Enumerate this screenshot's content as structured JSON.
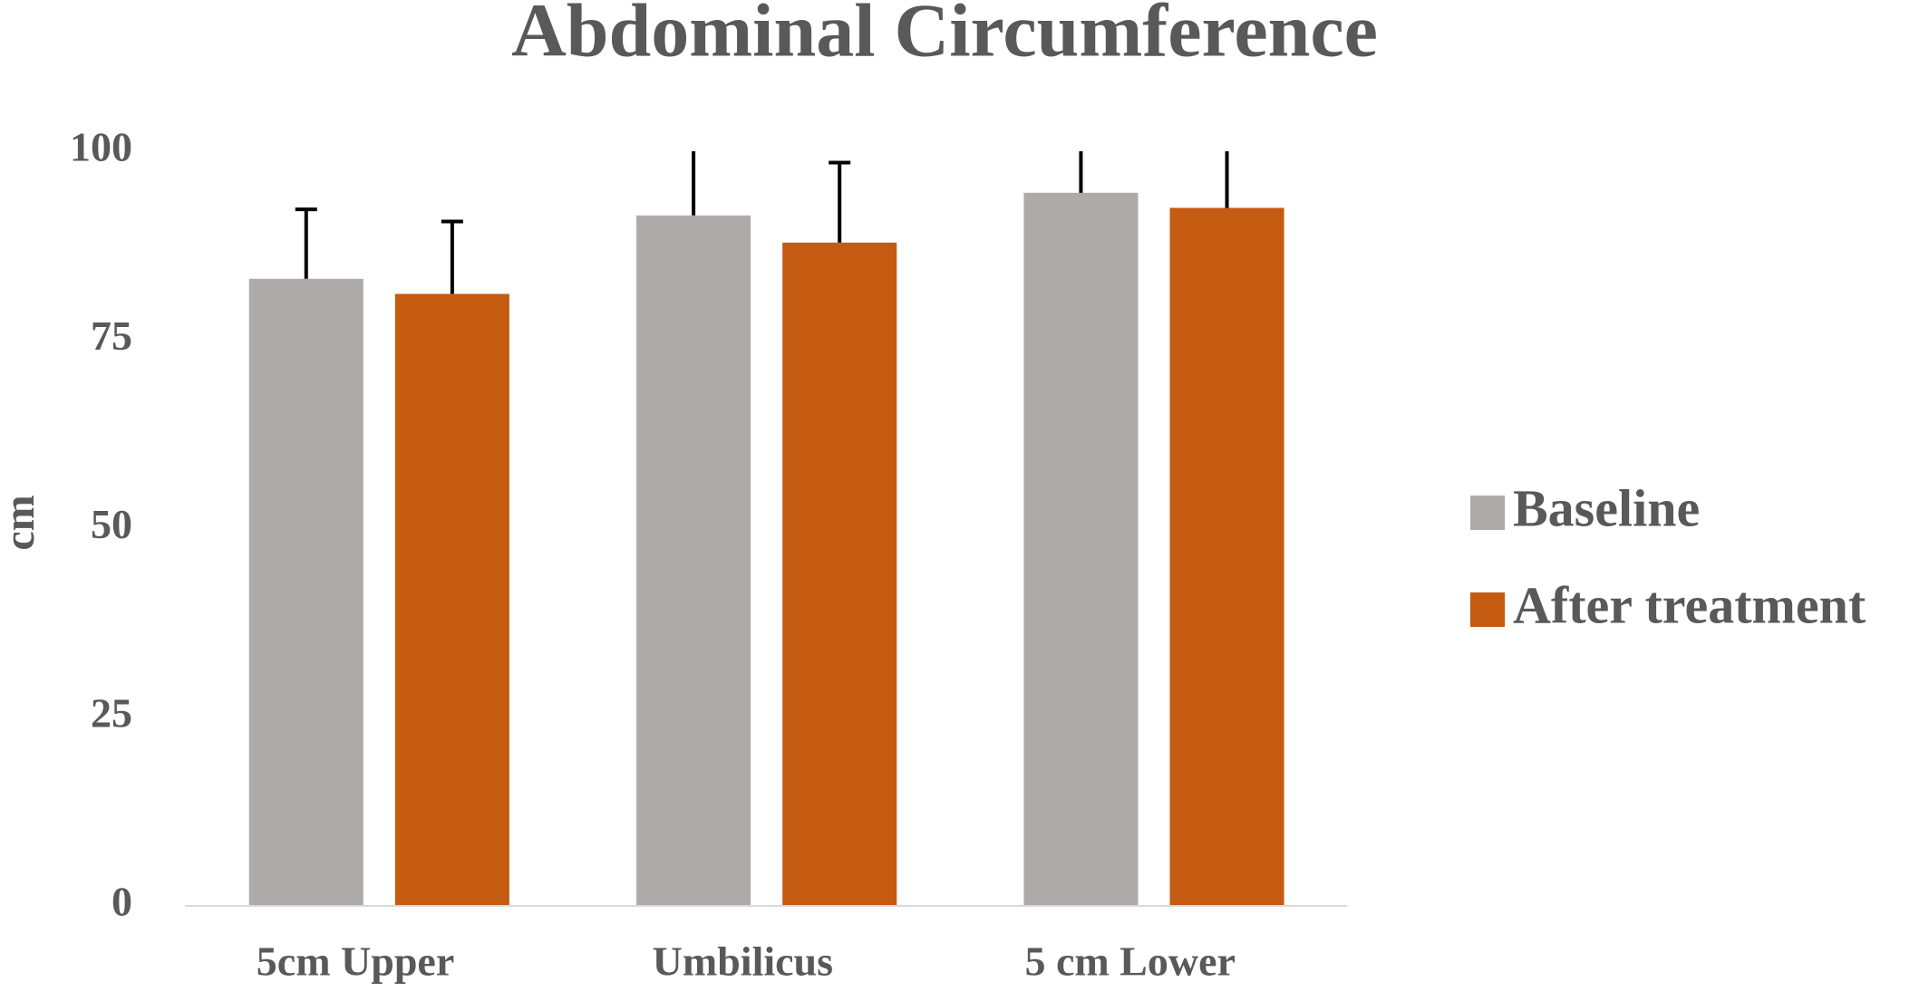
{
  "chart_data": {
    "type": "bar",
    "title": "Abdominal Circumference",
    "y_label": "cm",
    "categories": [
      "5cm Upper",
      "Umbilicus",
      "5 cm Lower"
    ],
    "series": [
      {
        "name": "Baseline",
        "color": "#aeaaa9",
        "values": [
          83.1,
          91.5,
          94.5
        ],
        "errors": [
          9.2,
          9,
          8
        ]
      },
      {
        "name": "After treatment",
        "color": "#c55a11",
        "values": [
          81.1,
          87.9,
          92.5
        ],
        "errors": [
          9.6,
          10.6,
          9
        ]
      }
    ],
    "ylim": [
      0,
      100
    ],
    "yticks": [
      0,
      25,
      50,
      75,
      100
    ],
    "grid": false,
    "legend": "right"
  }
}
